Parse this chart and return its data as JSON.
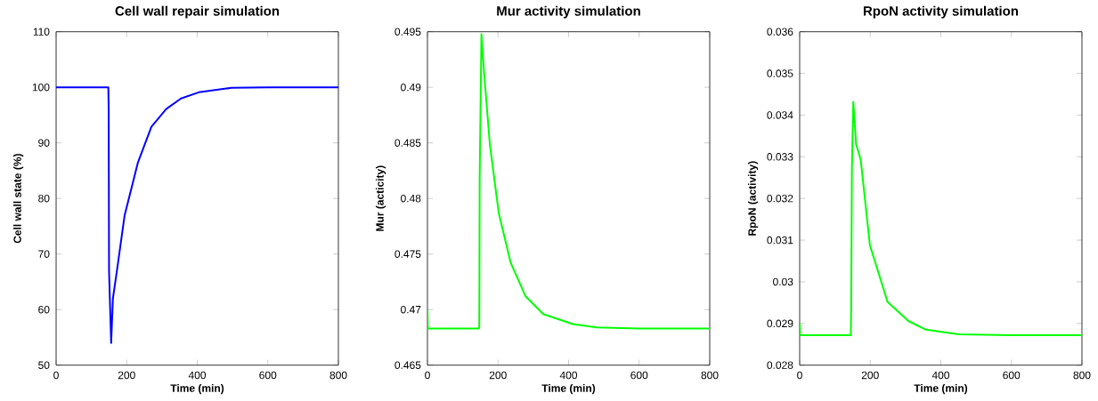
{
  "chart_data": [
    {
      "type": "line",
      "title": "Cell wall repair simulation",
      "xlabel": "Time (min)",
      "ylabel": "Cell wall state (%)",
      "x": [
        0,
        100,
        148,
        149,
        150,
        156,
        161,
        173,
        194,
        232,
        270,
        312,
        354,
        404,
        497,
        600,
        800
      ],
      "series": [
        {
          "color": "#0000ff",
          "values": [
            100,
            100,
            100,
            96,
            67,
            54,
            62,
            67.3,
            76.9,
            86.5,
            92.9,
            96.1,
            98,
            99.1,
            99.9,
            100,
            100
          ]
        }
      ],
      "xlim": [
        0,
        800
      ],
      "ylim": [
        50,
        110
      ],
      "xticks": [
        0,
        200,
        400,
        600,
        800
      ],
      "yticks": [
        50,
        60,
        70,
        80,
        90,
        100,
        110
      ]
    },
    {
      "type": "line",
      "title": "Mur activity simulation",
      "xlabel": "Time (min)",
      "ylabel": "Mur (acticity)",
      "x": [
        0,
        1,
        100,
        146,
        147,
        148,
        153,
        160,
        177,
        202,
        236,
        278,
        328,
        412,
        480,
        600,
        800
      ],
      "series": [
        {
          "color": "#00ff00",
          "values": [
            0.47,
            0.4683,
            0.4683,
            0.4683,
            0.4685,
            0.4818,
            0.4948,
            0.4915,
            0.4848,
            0.4787,
            0.4742,
            0.4712,
            0.4696,
            0.4687,
            0.4684,
            0.4683,
            0.4683
          ]
        }
      ],
      "xlim": [
        0,
        800
      ],
      "ylim": [
        0.465,
        0.495
      ],
      "xticks": [
        0,
        200,
        400,
        600,
        800
      ],
      "yticks": [
        0.465,
        0.47,
        0.475,
        0.48,
        0.485,
        0.49,
        0.495
      ]
    },
    {
      "type": "line",
      "title": "RpoN activity simulation",
      "xlabel": "Time (min)",
      "ylabel": "RpoN (activity)",
      "x": [
        0,
        1,
        100,
        145,
        146,
        148,
        152,
        160,
        173,
        199,
        249,
        308,
        358,
        451,
        600,
        800
      ],
      "series": [
        {
          "color": "#00ff00",
          "values": [
            0.029,
            0.02872,
            0.02872,
            0.02872,
            0.02945,
            0.03272,
            0.03432,
            0.0333,
            0.03293,
            0.03088,
            0.02952,
            0.02906,
            0.02885,
            0.02874,
            0.02872,
            0.02872
          ]
        }
      ],
      "xlim": [
        0,
        800
      ],
      "ylim": [
        0.028,
        0.036
      ],
      "xticks": [
        0,
        200,
        400,
        600,
        800
      ],
      "yticks": [
        0.028,
        0.029,
        0.03,
        0.031,
        0.032,
        0.033,
        0.034,
        0.035,
        0.036
      ]
    }
  ]
}
